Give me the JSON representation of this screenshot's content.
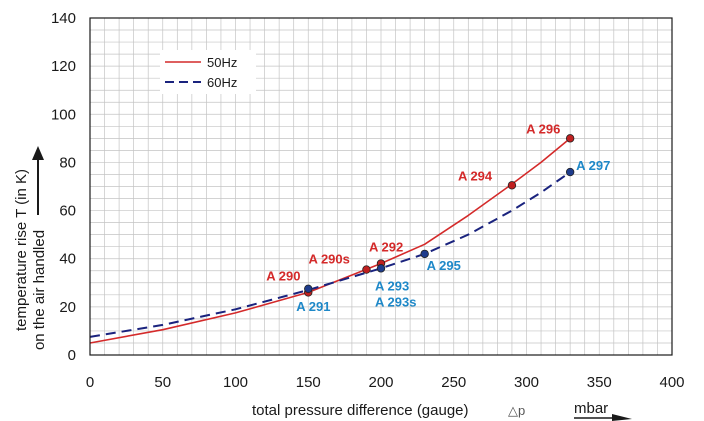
{
  "chart_data": {
    "type": "line",
    "xlabel": "total pressure difference (gauge)",
    "xlabel_symbol": "△p",
    "xunit": "mbar",
    "ylabel_line1": "temperature rise T (in K)",
    "ylabel_line2": "on the air handled",
    "xlim": [
      0,
      400
    ],
    "ylim": [
      0,
      140
    ],
    "x_ticks": [
      0,
      50,
      100,
      150,
      200,
      250,
      300,
      350,
      400
    ],
    "y_ticks": [
      0,
      20,
      40,
      60,
      80,
      100,
      120,
      140
    ],
    "grid": true,
    "minor_grid": {
      "x_step": 10,
      "y_step": 5
    },
    "legend_placement": "top-left",
    "series": [
      {
        "name": "50Hz",
        "color": "#d42a2a",
        "style": "solid",
        "x": [
          0,
          50,
          100,
          150,
          200,
          230,
          260,
          290,
          310,
          330
        ],
        "y": [
          5,
          10.5,
          17.5,
          26,
          38,
          46,
          58,
          71,
          80,
          90
        ]
      },
      {
        "name": "60Hz",
        "color": "#1a237e",
        "style": "dashed",
        "x": [
          0,
          50,
          100,
          150,
          200,
          230,
          260,
          290,
          310,
          330
        ],
        "y": [
          7.5,
          12.5,
          19,
          27,
          36,
          42,
          50,
          60,
          67.5,
          76
        ]
      }
    ],
    "annotations": [
      {
        "label": "A 290",
        "x": 150,
        "y": 26,
        "color": "#d42a2a"
      },
      {
        "label": "A 290s",
        "x": 190,
        "y": 35.5,
        "color": "#d42a2a"
      },
      {
        "label": "A 292",
        "x": 200,
        "y": 38,
        "color": "#d42a2a"
      },
      {
        "label": "A 294",
        "x": 290,
        "y": 70.5,
        "color": "#d42a2a"
      },
      {
        "label": "A 296",
        "x": 330,
        "y": 90,
        "color": "#d42a2a"
      },
      {
        "label": "A 291",
        "x": 150,
        "y": 27.5,
        "color": "#1e88c8"
      },
      {
        "label": "A 293",
        "x": 200,
        "y": 36,
        "color": "#1e88c8"
      },
      {
        "label": "A 293s",
        "x": 200,
        "y": 36,
        "color": "#1e88c8"
      },
      {
        "label": "A 295",
        "x": 230,
        "y": 42,
        "color": "#1e88c8"
      },
      {
        "label": "A 297",
        "x": 330,
        "y": 76,
        "color": "#1e88c8"
      }
    ]
  }
}
